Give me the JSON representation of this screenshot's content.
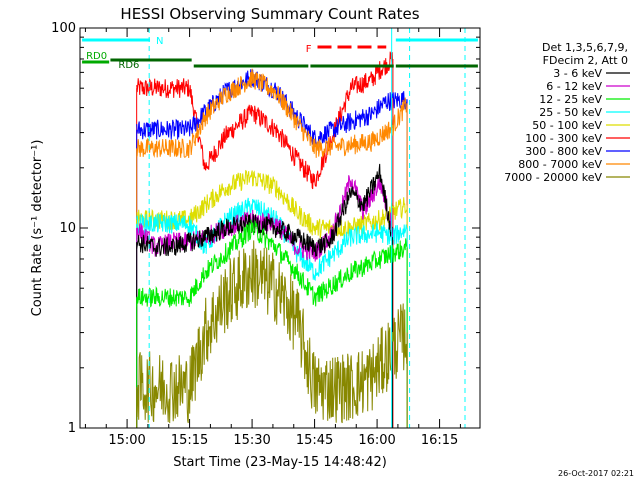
{
  "chart_data": {
    "type": "line",
    "title": "HESSI Observing Summary Count Rates",
    "xlabel": "Start Time (23-May-15 14:48:42)",
    "ylabel": "Count Rate (s⁻¹ detector⁻¹)",
    "y_scale": "log",
    "ylim": [
      1,
      100
    ],
    "x_unit": "minutes after 14:48:42",
    "xlim": [
      0,
      96
    ],
    "x_ticks": [
      {
        "t": 11.3,
        "label": "15:00"
      },
      {
        "t": 26.3,
        "label": "15:15"
      },
      {
        "t": 41.3,
        "label": "15:30"
      },
      {
        "t": 56.3,
        "label": "15:45"
      },
      {
        "t": 71.3,
        "label": "16:00"
      },
      {
        "t": 86.3,
        "label": "16:15"
      }
    ],
    "y_ticks": [
      {
        "v": 1,
        "label": "1"
      },
      {
        "v": 10,
        "label": "10"
      },
      {
        "v": 100,
        "label": "100"
      }
    ],
    "legend": {
      "placement": "right",
      "header_line1": "Det 1,3,5,6,7,9,",
      "header_line2": "FDecim 2, Att 0",
      "entries": [
        {
          "label": "3 - 6 keV",
          "color": "#000000"
        },
        {
          "label": "6 - 12 keV",
          "color": "#cc00cc"
        },
        {
          "label": "12 - 25 keV",
          "color": "#00ee00"
        },
        {
          "label": "25 - 50 keV",
          "color": "#00ffff"
        },
        {
          "label": "50 - 100 keV",
          "color": "#dddd00"
        },
        {
          "label": "100 - 300 keV",
          "color": "#ff0000"
        },
        {
          "label": "300 - 800 keV",
          "color": "#0000ff"
        },
        {
          "label": "800 - 7000 keV",
          "color": "#ff8800"
        },
        {
          "label": "7000 - 20000 keV",
          "color": "#888800"
        }
      ]
    },
    "series": [
      {
        "color": "#ff0000",
        "x": [
          13.6,
          26.3,
          30,
          35,
          41.3,
          47,
          52,
          56.3,
          65,
          70,
          72,
          75.1
        ],
        "y": [
          50,
          50,
          20,
          29,
          38,
          31,
          22,
          17,
          50,
          55,
          62,
          70
        ]
      },
      {
        "color": "#0000ff",
        "x": [
          13.6,
          26.3,
          30,
          35,
          41.3,
          47,
          52,
          56.3,
          65,
          70,
          73.5,
          78.5
        ],
        "y": [
          31,
          31,
          38,
          48,
          57,
          49,
          36,
          28,
          34,
          37,
          43,
          44
        ]
      },
      {
        "color": "#ff8800",
        "x": [
          13.6,
          26.3,
          30,
          35,
          41.3,
          47,
          52,
          56.3,
          65,
          70,
          75,
          78.5
        ],
        "y": [
          25,
          25,
          36,
          47,
          56,
          48,
          34,
          25,
          26,
          27,
          32,
          42
        ]
      },
      {
        "color": "#dddd00",
        "x": [
          13.6,
          26.3,
          30,
          35,
          41.3,
          47,
          52,
          56.3,
          65,
          72,
          75,
          78.5
        ],
        "y": [
          11,
          11,
          13,
          16,
          18,
          16,
          12,
          10,
          10,
          11,
          12,
          13
        ]
      },
      {
        "color": "#00ffff",
        "x": [
          13.6,
          26.3,
          30,
          35,
          41.3,
          47,
          52,
          56.3,
          65,
          72,
          75,
          78.5
        ],
        "y": [
          10.5,
          10.5,
          8,
          11,
          13,
          11,
          7.5,
          6,
          9,
          9.5,
          9,
          10
        ]
      },
      {
        "color": "#cc00cc",
        "x": [
          13.6,
          18,
          22,
          26.3,
          30,
          35,
          41.3,
          47,
          52,
          56.3,
          60,
          63,
          65,
          68,
          72,
          75
        ],
        "y": [
          10,
          8,
          8.5,
          8.5,
          9,
          10,
          11,
          10.5,
          8,
          7.5,
          9,
          13,
          18,
          12,
          17,
          10
        ]
      },
      {
        "color": "#000000",
        "x": [
          13.6,
          18,
          22,
          26.3,
          30,
          35,
          41.3,
          47,
          52,
          56.3,
          60,
          63,
          65,
          68,
          72,
          75
        ],
        "y": [
          8.5,
          8,
          8,
          8.5,
          9,
          10,
          10.5,
          10,
          9,
          8,
          8.5,
          12,
          15,
          13,
          19,
          9
        ]
      },
      {
        "color": "#00ee00",
        "x": [
          13.6,
          26.3,
          30,
          35,
          41.3,
          47,
          52,
          56.3,
          65,
          72,
          75,
          78.5
        ],
        "y": [
          4.5,
          4.5,
          6,
          7.5,
          10,
          8,
          6,
          4.5,
          6,
          7,
          7.5,
          8
        ]
      },
      {
        "color": "#888800",
        "x": [
          13.6,
          26.3,
          30,
          35,
          41.3,
          47,
          52,
          56.3,
          65,
          70,
          75,
          78.5
        ],
        "y": [
          1.6,
          1.6,
          3,
          4.5,
          6,
          5,
          3.5,
          1.6,
          1.6,
          1.8,
          2.5,
          3
        ]
      }
    ],
    "bars": [
      {
        "label": "RD0",
        "color": "#00aa00",
        "x0": 0.5,
        "x1": 7
      },
      {
        "label": "RD6",
        "color": "#006600",
        "x0": 7.3,
        "x1": 26.8
      },
      {
        "label": "",
        "color": "#006600",
        "x0": 27.3,
        "x1": 54.8
      },
      {
        "label": "",
        "color": "#006600",
        "x0": 55.3,
        "x1": 75.3
      },
      {
        "label": "",
        "color": "#006600",
        "x0": 75.8,
        "x1": 95.5
      },
      {
        "label": "N",
        "color": "#00ffff",
        "x0": 0.5,
        "x1": 16.8
      },
      {
        "label": "",
        "color": "#00ffff",
        "x0": 75.8,
        "x1": 95.5
      },
      {
        "label": "F",
        "color": "#ff0000",
        "x0": 57,
        "x1": 73.5
      }
    ],
    "vlines": [
      {
        "t": 16.6,
        "color": "#00ffff",
        "style": "dashed"
      },
      {
        "t": 74.8,
        "color": "#00ffff",
        "style": "solid"
      },
      {
        "t": 79.1,
        "color": "#00ffff",
        "style": "dashed"
      },
      {
        "t": 92.4,
        "color": "#00ffff",
        "style": "dashed"
      }
    ]
  },
  "footer": {
    "timestamp": "26-Oct-2017 02:21"
  }
}
